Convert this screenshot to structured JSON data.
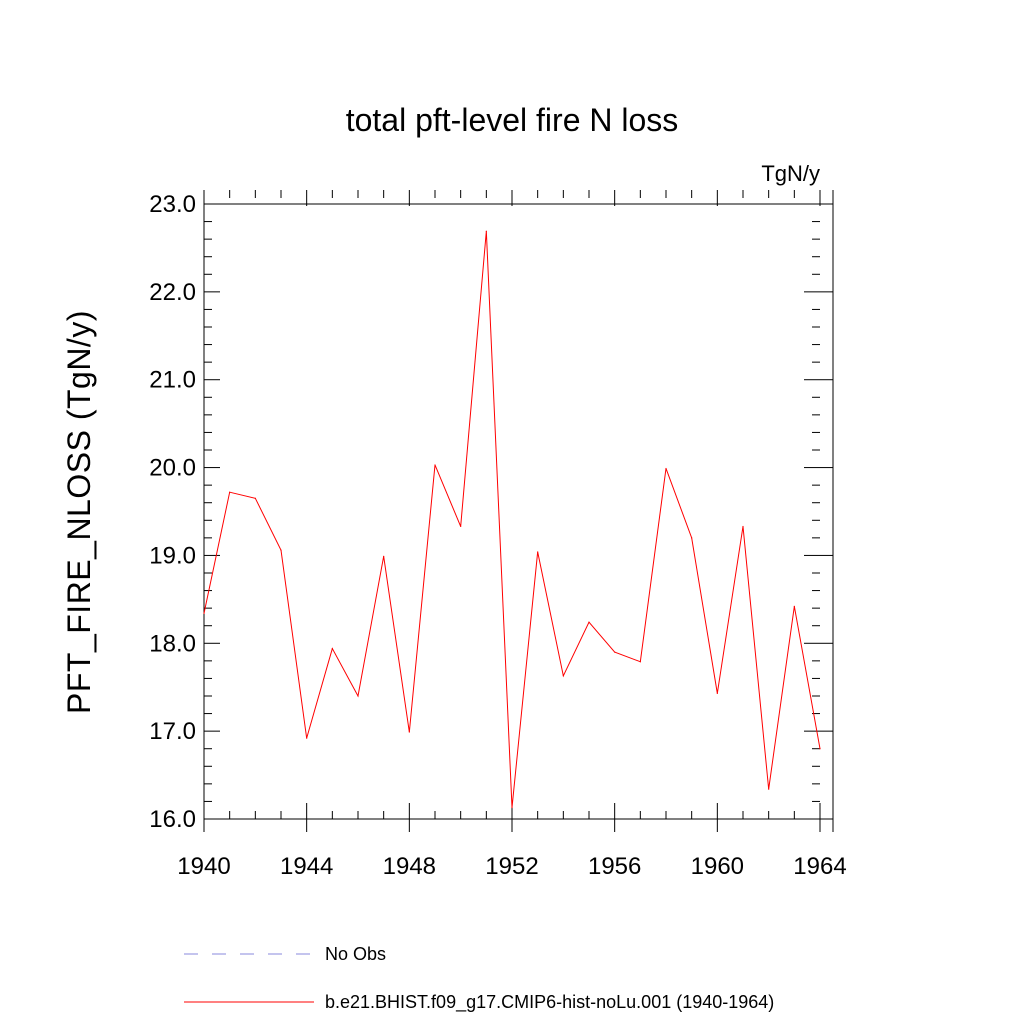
{
  "chart_data": {
    "type": "line",
    "title": "total pft-level fire N loss",
    "units_label": "TgN/y",
    "ylabel": "PFT_FIRE_NLOSS  (TgN/y)",
    "xlabel": "",
    "xlim": [
      1940,
      1964
    ],
    "ylim": [
      16.0,
      23.0
    ],
    "x_ticks": [
      1940,
      1944,
      1948,
      1952,
      1956,
      1960,
      1964
    ],
    "y_ticks": [
      16.0,
      17.0,
      18.0,
      19.0,
      20.0,
      21.0,
      22.0,
      23.0
    ],
    "x_tick_labels": [
      "1940",
      "1944",
      "1948",
      "1952",
      "1956",
      "1960",
      "1964"
    ],
    "y_tick_labels": [
      "16.0",
      "17.0",
      "18.0",
      "19.0",
      "20.0",
      "21.0",
      "22.0",
      "23.0"
    ],
    "grid": false,
    "series": [
      {
        "name": "b.e21.BHIST.f09_g17.CMIP6-hist-noLu.001 (1940-1964)",
        "color": "#ff0000",
        "style": "solid",
        "x": [
          1940,
          1941,
          1942,
          1943,
          1944,
          1945,
          1946,
          1947,
          1948,
          1949,
          1950,
          1951,
          1952,
          1953,
          1954,
          1955,
          1956,
          1957,
          1958,
          1959,
          1960,
          1961,
          1962,
          1963,
          1964
        ],
        "y": [
          18.34,
          19.72,
          19.65,
          19.06,
          16.92,
          17.94,
          17.4,
          18.99,
          16.99,
          20.03,
          19.33,
          22.69,
          16.13,
          19.04,
          17.63,
          18.24,
          17.9,
          17.79,
          19.99,
          19.2,
          17.43,
          19.33,
          16.34,
          18.42,
          16.8
        ]
      }
    ],
    "legend": [
      {
        "label": "No Obs",
        "color": "#8888dd",
        "style": "dashed"
      },
      {
        "label": "b.e21.BHIST.f09_g17.CMIP6-hist-noLu.001 (1940-1964)",
        "color": "#ff0000",
        "style": "solid"
      }
    ],
    "legend_placement": "bottom"
  }
}
